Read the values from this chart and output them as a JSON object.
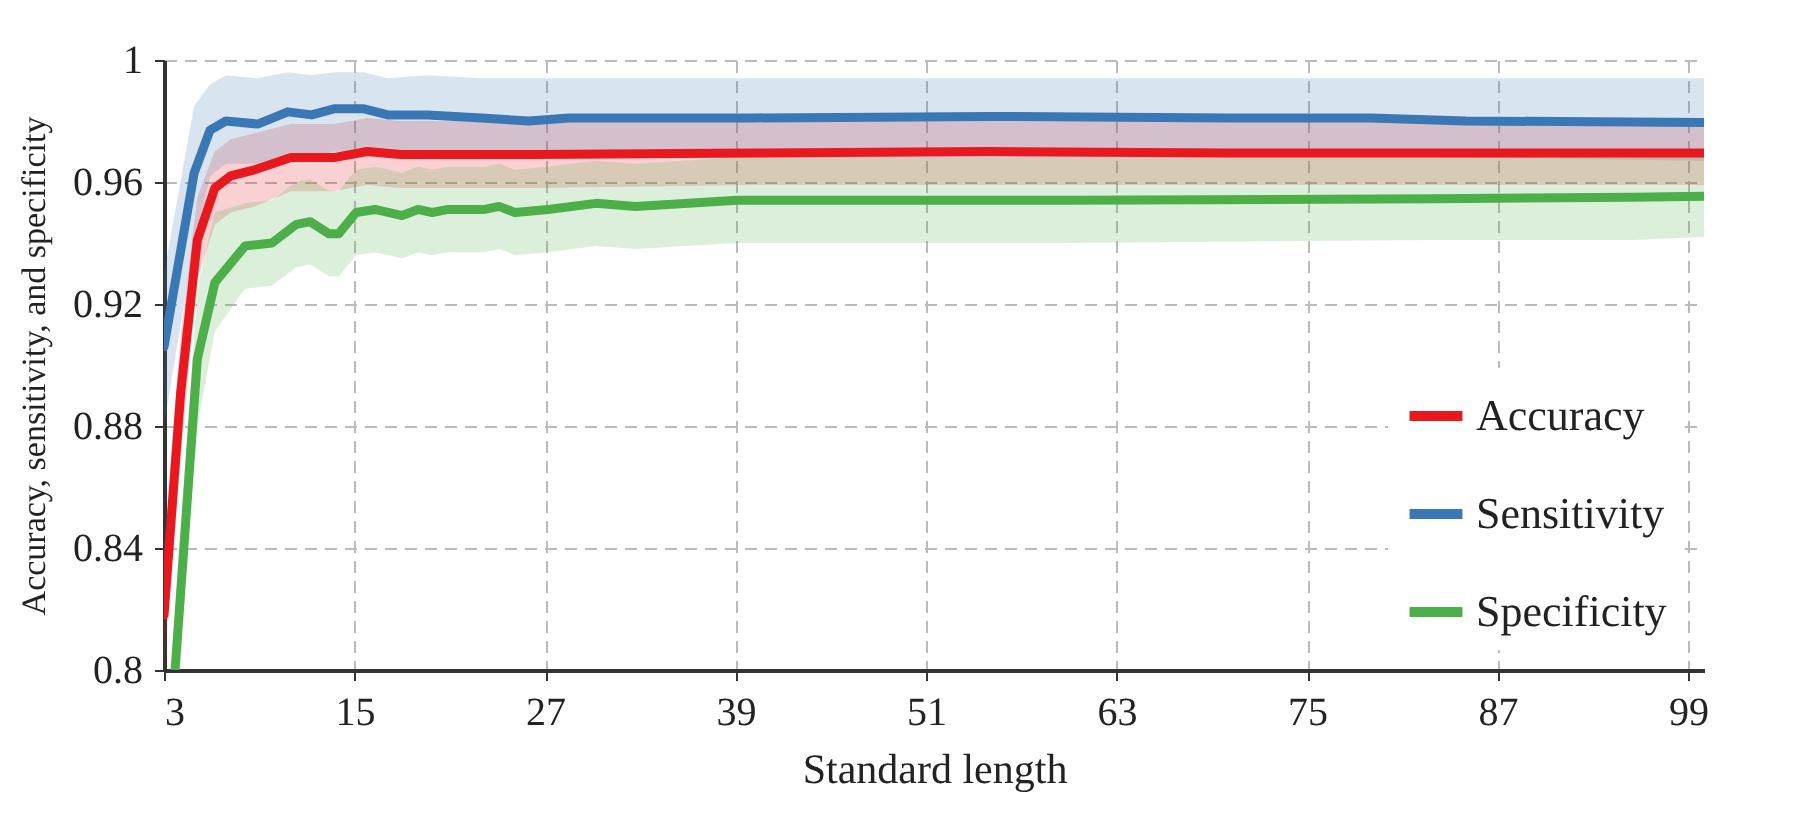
{
  "chart_data": {
    "type": "line",
    "xlabel": "Standard length",
    "ylabel": "Accuracy, sensitivity, and specificity",
    "xlim": [
      3,
      100
    ],
    "xticks": [
      3,
      15,
      27,
      39,
      51,
      63,
      75,
      87,
      99
    ],
    "ylim": [
      0.8,
      1
    ],
    "yticks": [
      0.8,
      0.84,
      0.88,
      0.92,
      0.96,
      1
    ],
    "grid": true,
    "legend": "bottom right",
    "line_style": "solid",
    "series": [
      {
        "name": "Accuracy",
        "color": "#e8191e",
        "x": [
          3,
          4.05,
          5.1,
          6.2,
          7.2,
          8.7,
          11,
          13.7,
          15.8,
          17.9,
          26.3,
          40,
          55,
          70,
          85,
          100
        ],
        "values": [
          0.818,
          0.891,
          0.941,
          0.958,
          0.962,
          0.964,
          0.968,
          0.968,
          0.97,
          0.969,
          0.969,
          0.9695,
          0.97,
          0.9695,
          0.9695,
          0.9695
        ],
        "upper": [
          0.84,
          0.91,
          0.955,
          0.97,
          0.974,
          0.976,
          0.979,
          0.979,
          0.981,
          0.98,
          0.98,
          0.98,
          0.98,
          0.98,
          0.98,
          0.98
        ],
        "lower": [
          0.8,
          0.87,
          0.928,
          0.946,
          0.95,
          0.952,
          0.957,
          0.957,
          0.959,
          0.958,
          0.958,
          0.959,
          0.959,
          0.959,
          0.959,
          0.959
        ]
      },
      {
        "name": "Sensitivity",
        "color": "#3a78b5",
        "x": [
          3,
          4.9,
          5.9,
          6.9,
          8.9,
          10.8,
          12.3,
          13.7,
          15.6,
          17.1,
          19.6,
          23,
          26,
          28.5,
          40,
          55,
          70,
          79,
          85,
          100
        ],
        "values": [
          0.906,
          0.963,
          0.977,
          0.98,
          0.979,
          0.983,
          0.982,
          0.984,
          0.984,
          0.982,
          0.982,
          0.981,
          0.98,
          0.981,
          0.981,
          0.9815,
          0.981,
          0.981,
          0.98,
          0.9795
        ],
        "upper": [
          0.93,
          0.985,
          0.992,
          0.995,
          0.994,
          0.996,
          0.995,
          0.996,
          0.996,
          0.994,
          0.995,
          0.994,
          0.994,
          0.994,
          0.994,
          0.994,
          0.994,
          0.994,
          0.994,
          0.994
        ],
        "lower": [
          0.88,
          0.94,
          0.962,
          0.966,
          0.966,
          0.969,
          0.968,
          0.97,
          0.97,
          0.969,
          0.969,
          0.968,
          0.968,
          0.968,
          0.968,
          0.968,
          0.968,
          0.968,
          0.968,
          0.967
        ]
      },
      {
        "name": "Specificity",
        "color": "#4daf4a",
        "x": [
          3.7,
          5.1,
          6.2,
          8.1,
          9.8,
          11.3,
          12.2,
          13.4,
          14,
          15.1,
          16.3,
          18,
          19,
          19.9,
          20.9,
          23.2,
          24.1,
          25.1,
          27.2,
          30.2,
          32.7,
          39.1,
          60,
          83,
          95.5,
          100
        ],
        "values": [
          0.8,
          0.902,
          0.927,
          0.939,
          0.94,
          0.946,
          0.947,
          0.943,
          0.943,
          0.95,
          0.951,
          0.949,
          0.951,
          0.95,
          0.951,
          0.951,
          0.952,
          0.95,
          0.951,
          0.953,
          0.952,
          0.954,
          0.954,
          0.9545,
          0.955,
          0.9553
        ],
        "upper": [
          0.82,
          0.925,
          0.95,
          0.953,
          0.954,
          0.96,
          0.961,
          0.957,
          0.957,
          0.964,
          0.965,
          0.963,
          0.965,
          0.964,
          0.965,
          0.965,
          0.966,
          0.964,
          0.965,
          0.967,
          0.966,
          0.968,
          0.968,
          0.968,
          0.969,
          0.969
        ],
        "lower": [
          0.8,
          0.88,
          0.911,
          0.925,
          0.926,
          0.932,
          0.933,
          0.929,
          0.929,
          0.936,
          0.937,
          0.935,
          0.937,
          0.936,
          0.937,
          0.937,
          0.938,
          0.936,
          0.937,
          0.939,
          0.938,
          0.94,
          0.94,
          0.941,
          0.941,
          0.942
        ]
      }
    ]
  }
}
